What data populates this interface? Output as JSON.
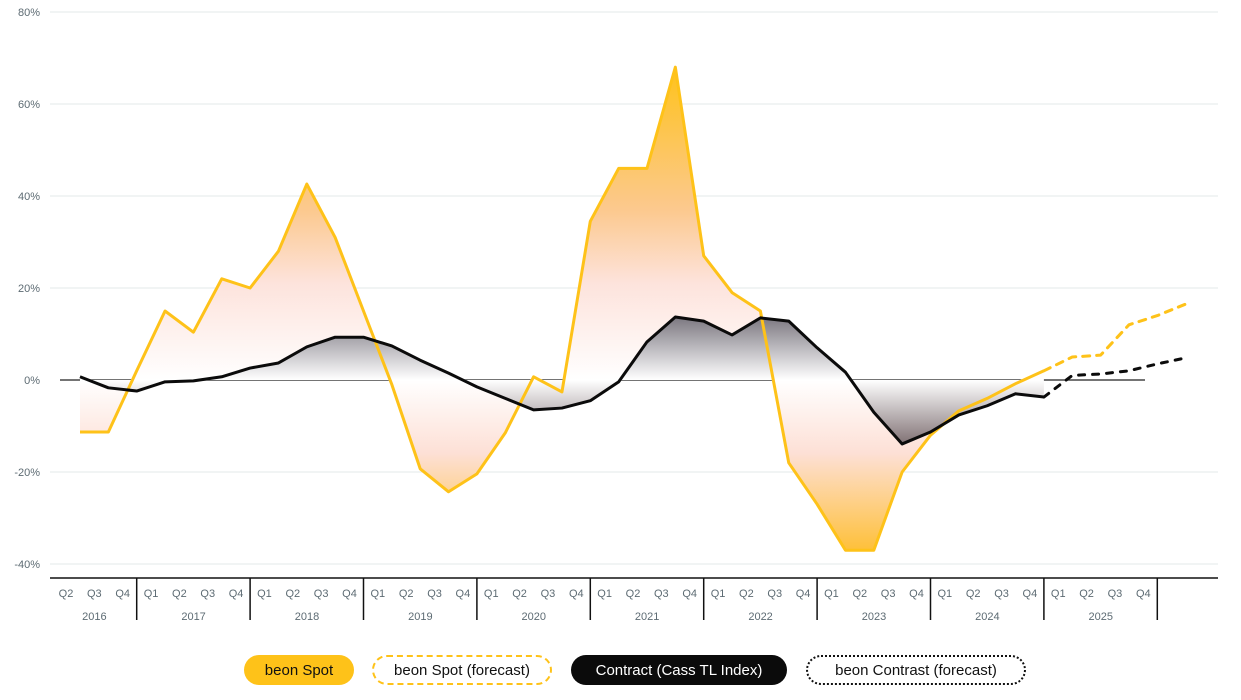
{
  "chart_data": {
    "type": "area",
    "title": "",
    "xlabel": "",
    "ylabel": "",
    "ylim": [
      -40,
      80
    ],
    "yticks": [
      "80%",
      "60%",
      "40%",
      "20%",
      "0%",
      "-20%",
      "-40%"
    ],
    "ytick_values": [
      80,
      60,
      40,
      20,
      0,
      -20,
      -40
    ],
    "grid": true,
    "legend_placement": "bottom",
    "years": [
      {
        "label": "2016",
        "quarters": [
          "Q2",
          "Q3",
          "Q4"
        ]
      },
      {
        "label": "2017",
        "quarters": [
          "Q1",
          "Q2",
          "Q3",
          "Q4"
        ]
      },
      {
        "label": "2018",
        "quarters": [
          "Q1",
          "Q2",
          "Q3",
          "Q4"
        ]
      },
      {
        "label": "2019",
        "quarters": [
          "Q1",
          "Q2",
          "Q3",
          "Q4"
        ]
      },
      {
        "label": "2020",
        "quarters": [
          "Q1",
          "Q2",
          "Q3",
          "Q4"
        ]
      },
      {
        "label": "2021",
        "quarters": [
          "Q1",
          "Q2",
          "Q3",
          "Q4"
        ]
      },
      {
        "label": "2022",
        "quarters": [
          "Q1",
          "Q2",
          "Q3",
          "Q4"
        ]
      },
      {
        "label": "2023",
        "quarters": [
          "Q1",
          "Q2",
          "Q3",
          "Q4"
        ]
      },
      {
        "label": "2024",
        "quarters": [
          "Q1",
          "Q2",
          "Q3",
          "Q4"
        ]
      },
      {
        "label": "2025",
        "quarters": [
          "Q1",
          "Q2",
          "Q3",
          "Q4"
        ]
      }
    ],
    "series": [
      {
        "name": "beon Spot",
        "color": "#fec219",
        "style": "solid",
        "values": [
          -11.3,
          -11.3,
          2,
          15,
          10.4,
          22,
          20,
          28,
          42.6,
          31,
          15,
          -1,
          -19.3,
          -24.3,
          -20.4,
          -11.5,
          0.7,
          -2.6,
          34.5,
          46,
          46,
          68,
          27,
          19,
          15,
          -18,
          -27,
          -37,
          -37,
          -20,
          -12,
          -6.7,
          -4,
          -0.8,
          2
        ]
      },
      {
        "name": "beon Spot (forecast)",
        "color": "#fec219",
        "style": "dashed",
        "start_index": 34,
        "values": [
          2,
          5,
          5.4,
          12,
          14,
          16.5
        ]
      },
      {
        "name": "Contract (Cass TL Index)",
        "color": "#0b0b0b",
        "style": "solid",
        "values": [
          0.7,
          -1.7,
          -2.4,
          -0.4,
          -0.2,
          0.7,
          2.6,
          3.7,
          7.2,
          9.3,
          9.3,
          7.4,
          4.3,
          1.5,
          -1.5,
          -4,
          -6.5,
          -6.1,
          -4.5,
          -0.4,
          8.3,
          13.7,
          12.8,
          9.8,
          13.5,
          12.8,
          7,
          1.7,
          -7,
          -13.9,
          -11.3,
          -7.6,
          -5.6,
          -3,
          -3.7
        ]
      },
      {
        "name": "beon Contrast (forecast)",
        "color": "#0b0b0b",
        "style": "dashed",
        "start_index": 34,
        "values": [
          -3.7,
          1,
          1.3,
          2,
          3.5,
          4.8
        ]
      }
    ]
  },
  "legend": {
    "spot": "beon Spot",
    "spot_forecast": "beon Spot (forecast)",
    "contract": "Contract (Cass TL Index)",
    "contract_forecast": "beon Contrast (forecast)"
  }
}
